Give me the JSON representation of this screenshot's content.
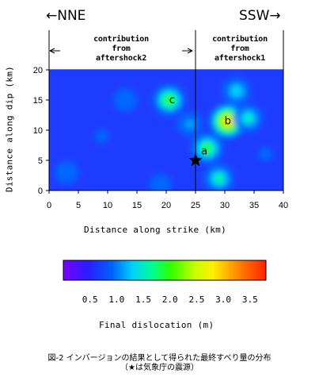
{
  "direction_left": "←NNE",
  "direction_right": "SSW→",
  "contribution_left": [
    "contribution",
    "from",
    "aftershock2"
  ],
  "contribution_right": [
    "contribution",
    "from",
    "aftershock1"
  ],
  "chart_data": {
    "type": "heatmap",
    "xlabel": "Distance along strike (km)",
    "ylabel": "Distance along dip (km)",
    "xlim": [
      0,
      40
    ],
    "ylim": [
      0,
      20
    ],
    "xticks": [
      0,
      5,
      10,
      15,
      20,
      25,
      30,
      35,
      40
    ],
    "yticks": [
      0,
      5,
      10,
      15,
      20
    ],
    "divider_x": 25,
    "hypocenter": {
      "x": 25,
      "y": 5
    },
    "annotations": [
      {
        "label": "a",
        "x": 26.5,
        "y": 6.5
      },
      {
        "label": "b",
        "x": 30.5,
        "y": 11.5
      },
      {
        "label": "c",
        "x": 21,
        "y": 15
      }
    ],
    "colorbar": {
      "label": "Final dislocation (m)",
      "ticks": [
        "0.5",
        "1.0",
        "1.5",
        "2.0",
        "2.5",
        "3.0",
        "3.5"
      ],
      "range": [
        0,
        3.8
      ]
    },
    "slip_peaks_m": [
      {
        "x": 30.5,
        "y": 11.5,
        "value": 3.5
      },
      {
        "x": 20.5,
        "y": 15,
        "value": 2.4
      },
      {
        "x": 27,
        "y": 7,
        "value": 2.3
      },
      {
        "x": 34,
        "y": 12,
        "value": 1.9
      },
      {
        "x": 32,
        "y": 16.5,
        "value": 1.8
      },
      {
        "x": 29,
        "y": 2,
        "value": 2.0
      },
      {
        "x": 3,
        "y": 3,
        "value": 1.4
      },
      {
        "x": 13,
        "y": 15,
        "value": 1.4
      },
      {
        "x": 9,
        "y": 9,
        "value": 1.0
      },
      {
        "x": 37,
        "y": 6,
        "value": 1.0
      },
      {
        "x": 19,
        "y": 1,
        "value": 1.3
      },
      {
        "x": 24,
        "y": 11,
        "value": 1.5
      }
    ]
  },
  "caption_line1": "図-2 インバージョンの結果として得られた最終すべり量の分布",
  "caption_line2": "（★は気象庁の震源）"
}
